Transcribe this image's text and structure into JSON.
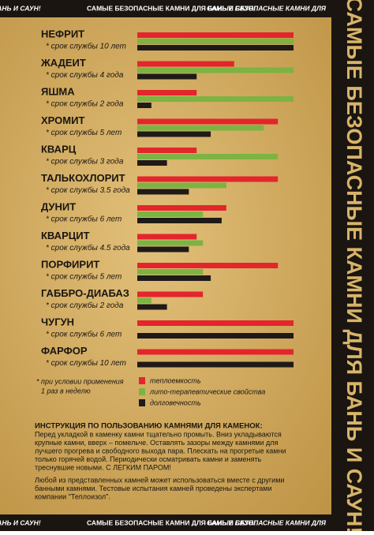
{
  "strip_top": [
    "ДЛЯ БАНЬ И САУН!",
    "САМЫЕ БЕЗОПАСНЫЕ КАМНИ ДЛЯ БАНЬ И САУН!",
    "САМЫЕ БЕЗОПАСНЫЕ КАМНИ ДЛЯ"
  ],
  "strip_bottom": [
    "ДЛЯ БАНЬ И САУН!",
    "САМЫЕ БЕЗОПАСНЫЕ КАМНИ ДЛЯ БАНЬ И САУН!",
    "САМЫЕ БЕЗОПАСНЫЕ КАМНИ ДЛЯ"
  ],
  "side_title": "САМЫЕ БЕЗОПАСНЫЕ КАМНИ ДЛЯ БАНЬ И САУН!",
  "chart_data": {
    "type": "bar",
    "orientation": "horizontal",
    "categories": [
      "НЕФРИТ",
      "ЖАДЕИТ",
      "ЯШМА",
      "ХРОМИТ",
      "КВАРЦ",
      "ТАЛЬКОХЛОРИТ",
      "ДУНИТ",
      "КВАРЦИТ",
      "ПОРФИРИТ",
      "ГАББРО-ДИАБАЗ",
      "ЧУГУН",
      "ФАРФОР"
    ],
    "notes": [
      "* срок службы 10 лет",
      "* срок службы 4 года",
      "* срок службы  2 года",
      "* срок службы  5 лет",
      "* срок службы 3 года",
      "* срок службы  3.5 года",
      "* срок службы 6 лет",
      "* срок службы 4.5 года",
      "* срок службы 5 лет",
      "* срок службы  2 года",
      "* срок службы  6 лет",
      "* срок службы 10 лет"
    ],
    "series": [
      {
        "name": "теплоемкость",
        "color": "#e3262b",
        "values": [
          10,
          6.2,
          3.8,
          9,
          3.8,
          9,
          5.7,
          3.8,
          9,
          4.2,
          10,
          10
        ]
      },
      {
        "name": "лито-терапевтические свойства",
        "color": "#7cb342",
        "values": [
          10,
          10,
          10,
          8.1,
          9,
          5.7,
          4.2,
          4.2,
          4.2,
          0.9,
          null,
          null
        ]
      },
      {
        "name": "долговечность",
        "color": "#1f1a17",
        "values": [
          10,
          3.8,
          0.9,
          4.7,
          1.9,
          3.3,
          5.4,
          3.3,
          4.7,
          1.9,
          10,
          10
        ]
      }
    ],
    "footnote": [
      "* при условии применения",
      "1 раз в неделю"
    ]
  },
  "instruction": {
    "title": "ИНСТРУКЦИЯ ПО ПОЛЬЗОВАНИЮ КАМНЯМИ ДЛЯ КАМЕНОК:",
    "lines": [
      "Перед укладкой в каменку камни тщательно промыть. Вниз укладываются",
      "крупные камни, вверх – помельче. Оставлять зазоры между камнями для",
      "лучшего прогрева и свободного выхода пара. Плескать на прогретые камни",
      "только горячей водой. Периодически осматривать камни и заменять",
      "треснувшие новыми. С ЛЕГКИМ ПАРОМ!"
    ],
    "lines2": [
      "Любой из представленных камней может использоваться вместе с другими",
      "банными камнями. Тестовые испытания камней проведены экспертами",
      "компании \"Теплоизол\"."
    ]
  }
}
